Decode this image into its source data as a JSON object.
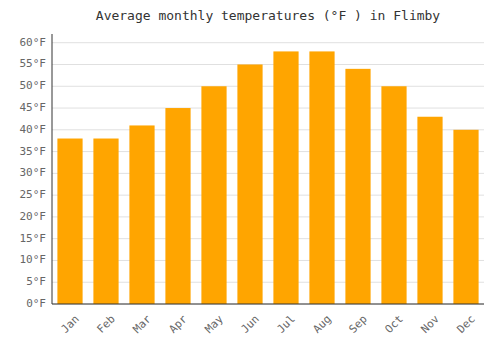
{
  "chart_data": {
    "type": "bar",
    "title": "Average monthly temperatures (°F ) in Flimby",
    "categories": [
      "Jan",
      "Feb",
      "Mar",
      "Apr",
      "May",
      "Jun",
      "Jul",
      "Aug",
      "Sep",
      "Oct",
      "Nov",
      "Dec"
    ],
    "values": [
      38,
      38,
      41,
      45,
      50,
      55,
      58,
      58,
      54,
      50,
      43,
      40
    ],
    "color": "#FFA500",
    "ylim": [
      0,
      62
    ],
    "yticks": [
      {
        "value": 0,
        "label": "0°F"
      },
      {
        "value": 5,
        "label": "5°F"
      },
      {
        "value": 10,
        "label": "10°F"
      },
      {
        "value": 15,
        "label": "15°F"
      },
      {
        "value": 20,
        "label": "20°F"
      },
      {
        "value": 25,
        "label": "25°F"
      },
      {
        "value": 30,
        "label": "30°F"
      },
      {
        "value": 35,
        "label": "35°F"
      },
      {
        "value": 40,
        "label": "40°F"
      },
      {
        "value": 45,
        "label": "45°F"
      },
      {
        "value": 50,
        "label": "50°F"
      },
      {
        "value": 55,
        "label": "55°F"
      },
      {
        "value": 60,
        "label": "60°F"
      }
    ],
    "grid": true
  }
}
